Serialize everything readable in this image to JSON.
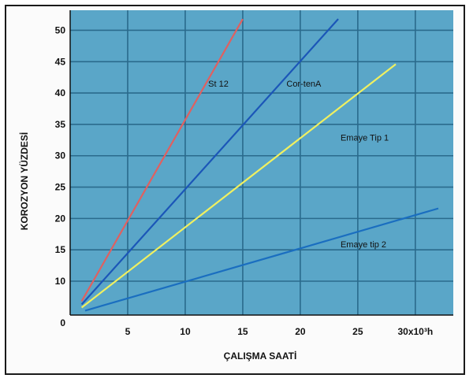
{
  "chart_data": {
    "type": "line",
    "xlabel": "ÇALIŞMA SAATİ",
    "ylabel": "KOROZYON YÜZDESİ",
    "x_ticks": [
      "0",
      "5",
      "10",
      "15",
      "20",
      "25",
      "30x10³h"
    ],
    "x_tick_values": [
      0,
      5,
      10,
      15,
      20,
      25,
      30
    ],
    "y_ticks": [
      "10",
      "15",
      "20",
      "25",
      "30",
      "35",
      "40",
      "45",
      "50"
    ],
    "y_tick_values": [
      10,
      15,
      20,
      25,
      30,
      35,
      40,
      45,
      50
    ],
    "xlim": [
      0,
      33.3
    ],
    "ylim": [
      4.6,
      53.2
    ],
    "grid": true,
    "colors": {
      "background": "#5aa6c8",
      "grid": "#2a6a8c",
      "axis": "#111111"
    },
    "series": [
      {
        "name": "St 12",
        "color": "#e06060",
        "x": [
          1,
          15
        ],
        "y": [
          6.8,
          51.8
        ],
        "label_at": [
          12,
          41
        ]
      },
      {
        "name": "Cor-tenA",
        "color": "#1b56b8",
        "x": [
          1,
          23.3
        ],
        "y": [
          6.3,
          51.8
        ],
        "label_at": [
          18.8,
          41
        ]
      },
      {
        "name": "Emaye Tip 1",
        "color": "#f0f060",
        "x": [
          1,
          28.3
        ],
        "y": [
          5.8,
          44.6
        ],
        "label_at": [
          23.5,
          32.4
        ]
      },
      {
        "name": "Emaye tip 2",
        "color": "#1a6ec0",
        "x": [
          1.3,
          32
        ],
        "y": [
          5.3,
          21.6
        ],
        "label_at": [
          23.5,
          15.4
        ]
      }
    ]
  }
}
